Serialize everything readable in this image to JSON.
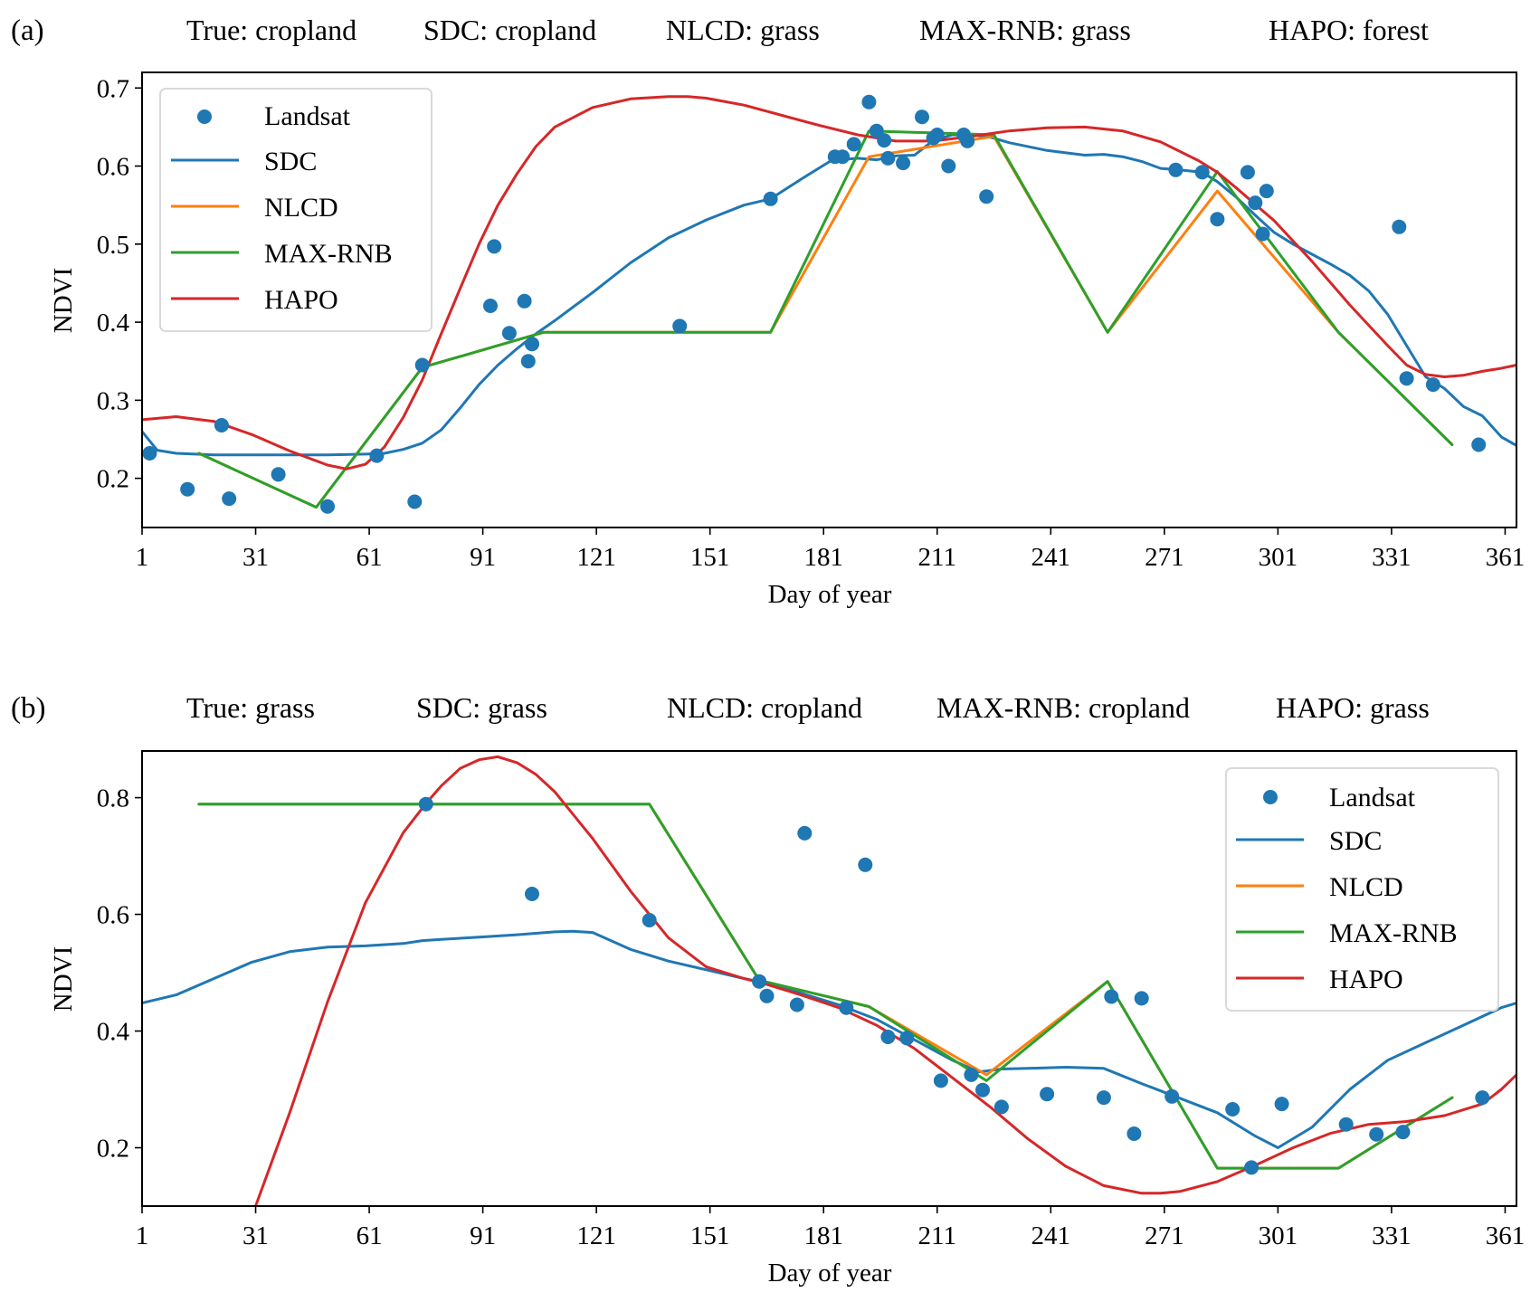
{
  "figure": {
    "panels": [
      {
        "label": "(a)",
        "titles": [
          "True: cropland",
          "SDC: cropland",
          "NLCD: grass",
          "MAX-RNB: grass",
          "HAPO: forest"
        ]
      },
      {
        "label": "(b)",
        "titles": [
          "True: grass",
          "SDC: grass",
          "NLCD: cropland",
          "MAX-RNB: cropland",
          "HAPO: grass"
        ]
      }
    ],
    "colors": {
      "Landsat": "#1f77b4",
      "SDC": "#1f77b4",
      "NLCD": "#ff7f0e",
      "MAX-RNB": "#2ca02c",
      "HAPO": "#d62728"
    }
  },
  "chart_data": [
    {
      "type": "line",
      "panel": "(a)",
      "title": "True: cropland   SDC: cropland   NLCD: grass   MAX-RNB: grass   HAPO: forest",
      "xlabel": "Day of year",
      "ylabel": "NDVI",
      "xlim": [
        1,
        364
      ],
      "ylim": [
        0.137,
        0.72
      ],
      "xticks": [
        1,
        31,
        61,
        91,
        121,
        151,
        181,
        211,
        241,
        271,
        301,
        331,
        361
      ],
      "yticks": [
        0.2,
        0.3,
        0.4,
        0.5,
        0.6,
        0.7
      ],
      "ytick_labels": [
        "0.2",
        "0.3",
        "0.4",
        "0.5",
        "0.6",
        "0.7"
      ],
      "grid": false,
      "legend": {
        "position": "top-left",
        "entries": [
          "Landsat",
          "SDC",
          "NLCD",
          "MAX-RNB",
          "HAPO"
        ]
      },
      "scatter": {
        "name": "Landsat",
        "x": [
          3,
          13,
          22,
          24,
          37,
          50,
          63,
          73,
          75,
          93,
          94,
          98,
          102,
          103,
          104,
          143,
          167,
          184,
          186,
          189,
          193,
          195,
          197,
          198,
          202,
          207,
          210,
          211,
          214,
          218,
          219,
          224,
          274,
          281,
          285,
          293,
          295,
          297,
          298,
          333,
          335,
          342,
          354
        ],
        "y": [
          0.232,
          0.186,
          0.268,
          0.174,
          0.205,
          0.164,
          0.229,
          0.17,
          0.345,
          0.421,
          0.497,
          0.386,
          0.427,
          0.35,
          0.372,
          0.395,
          0.558,
          0.612,
          0.612,
          0.628,
          0.682,
          0.645,
          0.633,
          0.61,
          0.604,
          0.663,
          0.636,
          0.64,
          0.6,
          0.64,
          0.632,
          0.561,
          0.595,
          0.592,
          0.532,
          0.592,
          0.553,
          0.513,
          0.568,
          0.522,
          0.328,
          0.32,
          0.243
        ]
      },
      "series": [
        {
          "name": "SDC",
          "x": [
            1,
            5,
            10,
            20,
            30,
            40,
            50,
            60,
            65,
            70,
            75,
            80,
            85,
            90,
            95,
            100,
            105,
            110,
            120,
            130,
            140,
            150,
            160,
            167,
            175,
            183,
            190,
            195,
            200,
            205,
            210,
            215,
            220,
            225,
            230,
            240,
            250,
            255,
            260,
            265,
            270,
            275,
            281,
            285,
            290,
            295,
            300,
            305,
            310,
            315,
            320,
            325,
            330,
            335,
            340,
            345,
            350,
            355,
            360,
            364
          ],
          "y": [
            0.26,
            0.236,
            0.232,
            0.23,
            0.23,
            0.23,
            0.23,
            0.231,
            0.232,
            0.237,
            0.245,
            0.262,
            0.29,
            0.32,
            0.345,
            0.366,
            0.385,
            0.402,
            0.438,
            0.476,
            0.508,
            0.531,
            0.55,
            0.558,
            0.583,
            0.607,
            0.61,
            0.608,
            0.613,
            0.614,
            0.633,
            0.64,
            0.64,
            0.637,
            0.63,
            0.62,
            0.614,
            0.615,
            0.612,
            0.606,
            0.597,
            0.595,
            0.592,
            0.58,
            0.56,
            0.537,
            0.515,
            0.5,
            0.487,
            0.474,
            0.46,
            0.44,
            0.41,
            0.37,
            0.33,
            0.315,
            0.292,
            0.28,
            0.253,
            0.242
          ]
        },
        {
          "name": "NLCD",
          "x": [
            16,
            47,
            75,
            107,
            167,
            193,
            226,
            256,
            285,
            317,
            347
          ],
          "y": [
            0.232,
            0.163,
            0.342,
            0.387,
            0.387,
            0.612,
            0.638,
            0.387,
            0.568,
            0.387,
            0.243
          ]
        },
        {
          "name": "MAX-RNB",
          "x": [
            16,
            47,
            75,
            107,
            167,
            193,
            226,
            256,
            285,
            317,
            347
          ],
          "y": [
            0.232,
            0.163,
            0.342,
            0.387,
            0.387,
            0.645,
            0.64,
            0.387,
            0.593,
            0.387,
            0.243
          ]
        },
        {
          "name": "HAPO",
          "x": [
            1,
            10,
            20,
            30,
            40,
            50,
            55,
            60,
            65,
            70,
            75,
            80,
            85,
            90,
            95,
            100,
            105,
            110,
            120,
            130,
            140,
            145,
            150,
            160,
            170,
            180,
            190,
            200,
            210,
            220,
            230,
            240,
            250,
            260,
            270,
            280,
            285,
            290,
            300,
            310,
            320,
            330,
            335,
            340,
            345,
            350,
            355,
            360,
            364
          ],
          "y": [
            0.275,
            0.279,
            0.273,
            0.256,
            0.235,
            0.217,
            0.212,
            0.218,
            0.24,
            0.278,
            0.326,
            0.385,
            0.443,
            0.5,
            0.55,
            0.59,
            0.625,
            0.65,
            0.675,
            0.686,
            0.689,
            0.689,
            0.687,
            0.678,
            0.665,
            0.652,
            0.64,
            0.632,
            0.632,
            0.638,
            0.645,
            0.649,
            0.65,
            0.645,
            0.631,
            0.607,
            0.592,
            0.572,
            0.53,
            0.478,
            0.422,
            0.37,
            0.345,
            0.333,
            0.33,
            0.332,
            0.337,
            0.341,
            0.345
          ]
        }
      ]
    },
    {
      "type": "line",
      "panel": "(b)",
      "title": "True: grass   SDC: grass   NLCD: cropland   MAX-RNB: cropland   HAPO: grass",
      "xlabel": "Day of year",
      "ylabel": "NDVI",
      "xlim": [
        1,
        364
      ],
      "ylim": [
        0.1,
        0.88
      ],
      "xticks": [
        1,
        31,
        61,
        91,
        121,
        151,
        181,
        211,
        241,
        271,
        301,
        331,
        361
      ],
      "yticks": [
        0.2,
        0.4,
        0.6,
        0.8
      ],
      "ytick_labels": [
        "0.2",
        "0.4",
        "0.6",
        "0.8"
      ],
      "grid": false,
      "legend": {
        "position": "top-right",
        "entries": [
          "Landsat",
          "SDC",
          "NLCD",
          "MAX-RNB",
          "HAPO"
        ]
      },
      "scatter": {
        "name": "Landsat",
        "x": [
          76,
          104,
          135,
          164,
          166,
          174,
          176,
          187,
          192,
          198,
          203,
          212,
          220,
          223,
          228,
          240,
          255,
          257,
          263,
          265,
          273,
          289,
          294,
          302,
          319,
          327,
          334,
          355
        ],
        "y": [
          0.789,
          0.635,
          0.59,
          0.485,
          0.46,
          0.445,
          0.739,
          0.44,
          0.685,
          0.39,
          0.388,
          0.315,
          0.325,
          0.299,
          0.27,
          0.292,
          0.286,
          0.459,
          0.224,
          0.456,
          0.288,
          0.266,
          0.166,
          0.275,
          0.24,
          0.223,
          0.227,
          0.286
        ]
      },
      "series": [
        {
          "name": "SDC",
          "x": [
            1,
            10,
            20,
            30,
            40,
            50,
            60,
            70,
            75,
            80,
            90,
            100,
            110,
            115,
            120,
            130,
            140,
            150,
            160,
            165,
            175,
            185,
            195,
            205,
            215,
            222,
            228,
            235,
            245,
            255,
            265,
            275,
            285,
            295,
            301,
            310,
            320,
            330,
            340,
            350,
            360,
            364
          ],
          "y": [
            0.448,
            0.462,
            0.49,
            0.518,
            0.536,
            0.544,
            0.546,
            0.55,
            0.555,
            0.557,
            0.561,
            0.565,
            0.57,
            0.571,
            0.569,
            0.54,
            0.52,
            0.505,
            0.49,
            0.483,
            0.465,
            0.445,
            0.42,
            0.385,
            0.35,
            0.33,
            0.335,
            0.336,
            0.338,
            0.336,
            0.31,
            0.285,
            0.26,
            0.22,
            0.2,
            0.235,
            0.3,
            0.35,
            0.38,
            0.41,
            0.44,
            0.448
          ]
        },
        {
          "name": "NLCD",
          "x": [
            16,
            135,
            164,
            193,
            224,
            256,
            285,
            317,
            347
          ],
          "y": [
            0.789,
            0.789,
            0.487,
            0.442,
            0.325,
            0.485,
            0.165,
            0.165,
            0.286
          ]
        },
        {
          "name": "MAX-RNB",
          "x": [
            16,
            135,
            164,
            193,
            224,
            256,
            285,
            317,
            347
          ],
          "y": [
            0.789,
            0.789,
            0.487,
            0.442,
            0.315,
            0.485,
            0.165,
            0.165,
            0.286
          ]
        },
        {
          "name": "HAPO",
          "x": [
            31,
            40,
            50,
            60,
            70,
            76,
            80,
            85,
            90,
            95,
            100,
            105,
            110,
            120,
            130,
            140,
            150,
            160,
            165,
            175,
            185,
            195,
            205,
            215,
            225,
            235,
            245,
            255,
            265,
            270,
            275,
            285,
            295,
            305,
            315,
            325,
            335,
            345,
            355,
            360,
            364
          ],
          "y": [
            0.1,
            0.26,
            0.45,
            0.62,
            0.74,
            0.79,
            0.82,
            0.85,
            0.865,
            0.87,
            0.86,
            0.84,
            0.81,
            0.73,
            0.64,
            0.56,
            0.51,
            0.49,
            0.482,
            0.462,
            0.44,
            0.41,
            0.37,
            0.32,
            0.27,
            0.215,
            0.168,
            0.135,
            0.122,
            0.122,
            0.125,
            0.142,
            0.17,
            0.2,
            0.225,
            0.24,
            0.245,
            0.255,
            0.275,
            0.3,
            0.325
          ]
        }
      ]
    }
  ]
}
